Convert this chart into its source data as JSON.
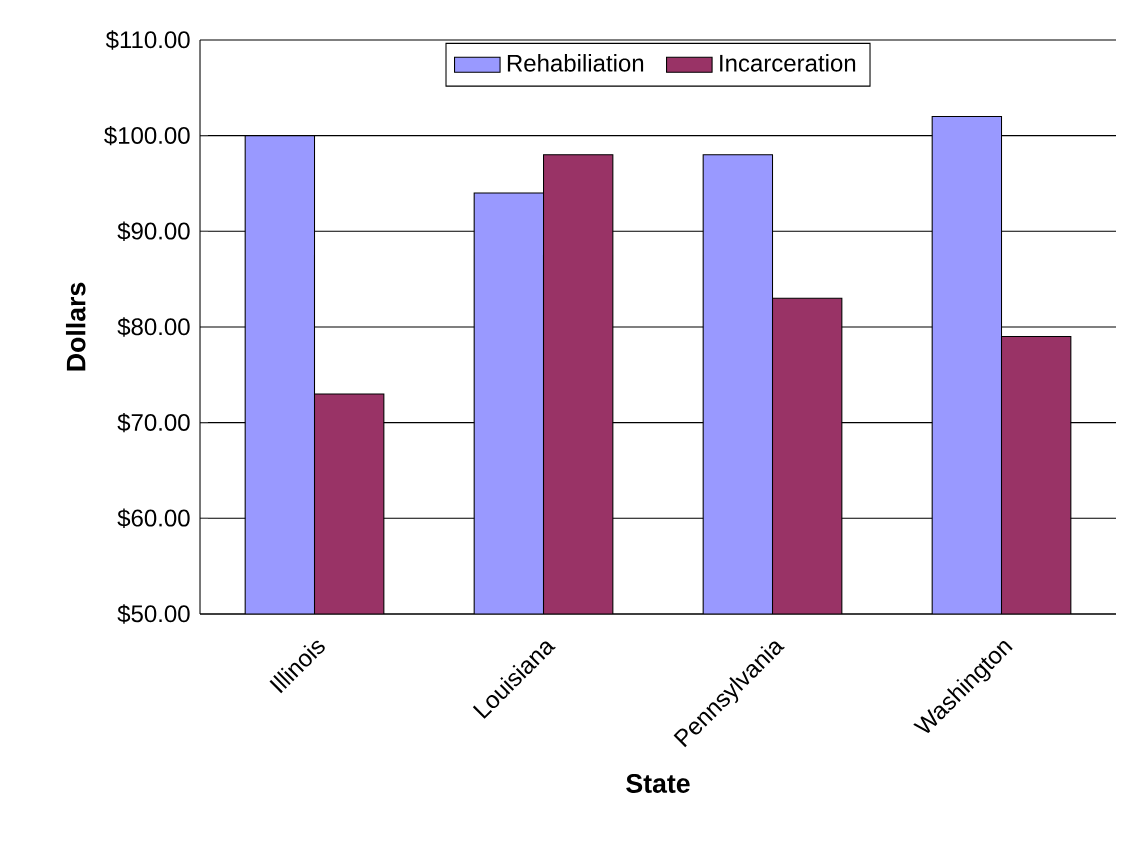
{
  "chart_data": {
    "type": "bar",
    "xlabel": "State",
    "ylabel": "Dollars",
    "categories": [
      "Illinois",
      "Louisiana",
      "Pennsylvania",
      "Washington"
    ],
    "series": [
      {
        "name": "Rehabiliation",
        "color": "#9999ff",
        "values": [
          100,
          94,
          98,
          102
        ]
      },
      {
        "name": "Incarceration",
        "color": "#993366",
        "values": [
          73,
          98,
          83,
          79
        ]
      }
    ],
    "ylim": [
      50,
      110
    ],
    "yticks": [
      {
        "value": 50,
        "label": "$50.00"
      },
      {
        "value": 60,
        "label": "$60.00"
      },
      {
        "value": 70,
        "label": "$70.00"
      },
      {
        "value": 80,
        "label": "$80.00"
      },
      {
        "value": 90,
        "label": "$90.00"
      },
      {
        "value": 100,
        "label": "$100.00"
      },
      {
        "value": 110,
        "label": "$110.00"
      }
    ],
    "grid": "y",
    "legend": "top"
  }
}
